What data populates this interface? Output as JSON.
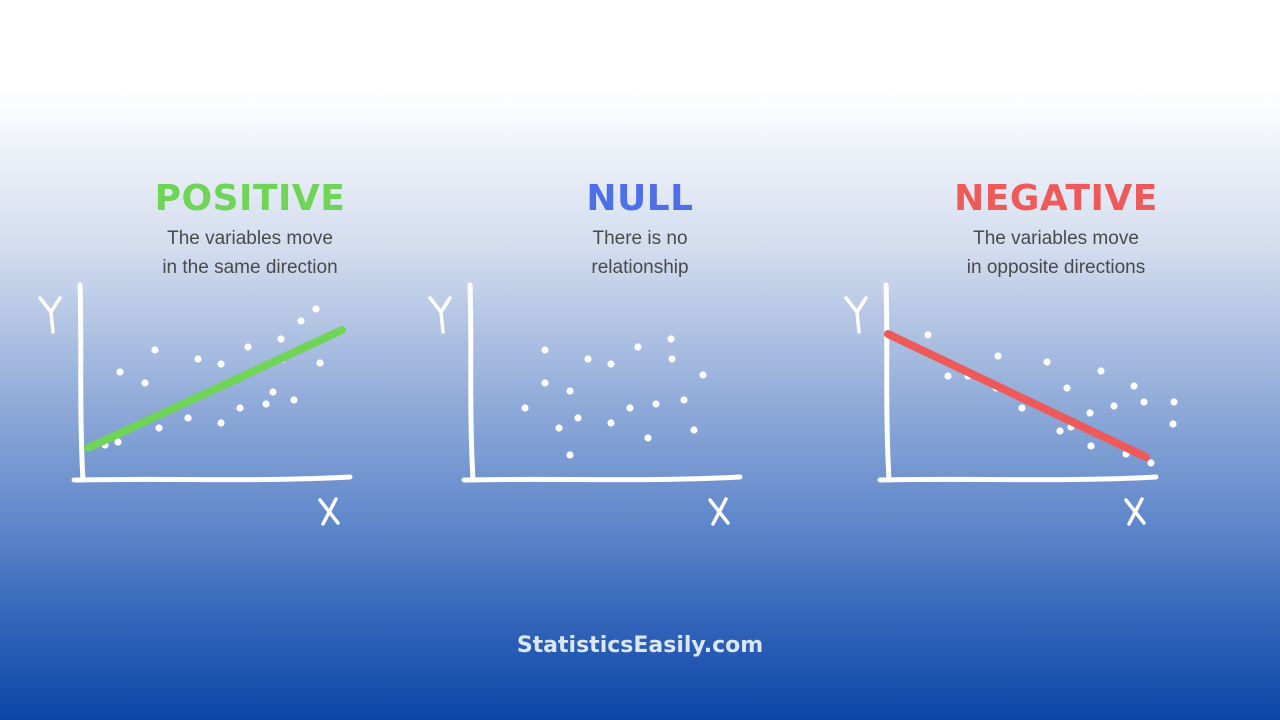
{
  "panels": [
    {
      "key": "positive",
      "title": "POSITIVE",
      "color": "#6fd457",
      "description": [
        "The variables move",
        "in the same direction"
      ],
      "axis_y": "Y",
      "axis_x": "X",
      "trend": "increasing"
    },
    {
      "key": "null",
      "title": "NULL",
      "color": "#4f6fe8",
      "description": [
        "There is no",
        "relationship"
      ],
      "axis_y": "Y",
      "axis_x": "X",
      "trend": "none"
    },
    {
      "key": "negative",
      "title": "NEGATIVE",
      "color": "#ee5a5a",
      "description": [
        "The variables move",
        "in opposite directions"
      ],
      "axis_y": "Y",
      "axis_x": "X",
      "trend": "decreasing"
    }
  ],
  "footer": {
    "brand": "StatisticsEasily.com"
  }
}
